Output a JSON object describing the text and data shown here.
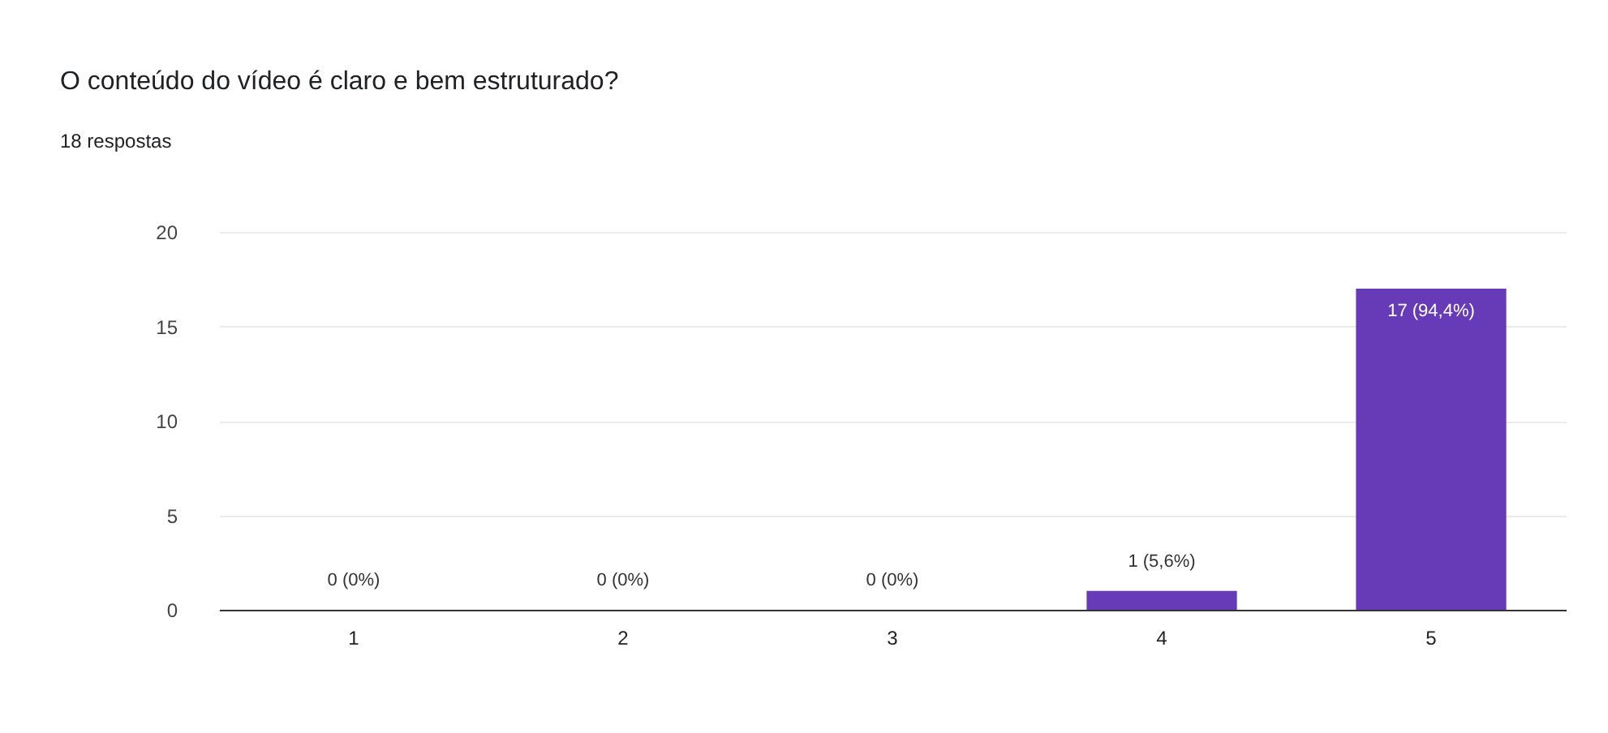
{
  "chart_data": {
    "type": "bar",
    "title": "O conteúdo do vídeo é claro e bem estruturado?",
    "subtitle": "18 respostas",
    "categories": [
      "1",
      "2",
      "3",
      "4",
      "5"
    ],
    "values": [
      0,
      0,
      0,
      1,
      17
    ],
    "value_labels": [
      "0 (0%)",
      "0 (0%)",
      "0 (0%)",
      "1 (5,6%)",
      "17 (94,4%)"
    ],
    "color": "#673ab7",
    "ylim": [
      0,
      20
    ],
    "yticks": [
      0,
      5,
      10,
      15,
      20
    ],
    "grid": "y"
  }
}
